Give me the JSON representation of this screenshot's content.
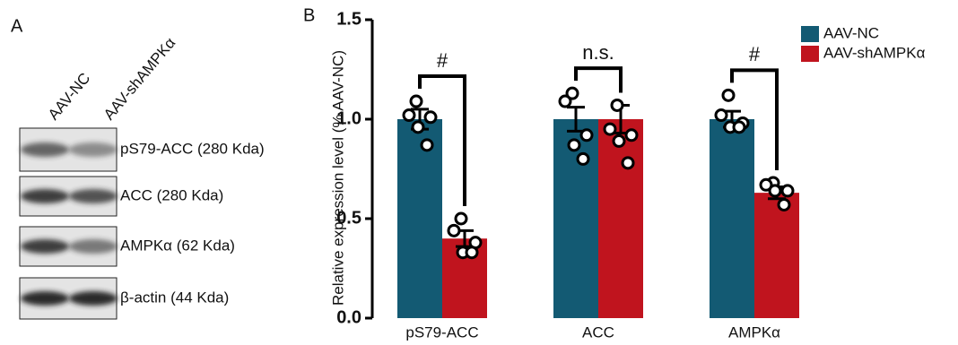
{
  "figure": {
    "panel_labels": [
      "A",
      "B"
    ],
    "blot": {
      "lanes": [
        "AAV-NC",
        "AAV-shAMPKα"
      ],
      "bands": [
        "pS79-ACC (280 Kda)",
        "ACC (280 Kda)",
        "AMPKα (62 Kda)",
        "β-actin (44 Kda)"
      ]
    }
  },
  "chart_data": {
    "type": "bar",
    "ylabel": "Relative expression level (% AAV-NC)",
    "categories": [
      "pS79-ACC",
      "ACC",
      "AMPKα"
    ],
    "series": [
      {
        "name": "AAV-NC",
        "color": "#135a73",
        "values": [
          1.0,
          1.0,
          1.0
        ],
        "errors": [
          0.05,
          0.06,
          0.04
        ],
        "points": [
          [
            1.09,
            1.02,
            1.01,
            0.96,
            0.87
          ],
          [
            1.13,
            1.09,
            0.92,
            0.87,
            0.8
          ],
          [
            1.12,
            1.02,
            0.98,
            0.96,
            0.96
          ]
        ]
      },
      {
        "name": "AAV-shAMPKα",
        "color": "#c0141e",
        "values": [
          0.4,
          1.0,
          0.63
        ],
        "errors": [
          0.04,
          0.07,
          0.03
        ],
        "points": [
          [
            0.5,
            0.44,
            0.38,
            0.33,
            0.33
          ],
          [
            1.07,
            0.95,
            0.92,
            0.89,
            0.78
          ],
          [
            0.68,
            0.67,
            0.64,
            0.64,
            0.57
          ]
        ]
      }
    ],
    "significance": [
      "#",
      "n.s.",
      "#"
    ],
    "ylim": [
      0,
      1.5
    ],
    "yticks": [
      {
        "value": 0,
        "label": "0.0"
      },
      {
        "value": 0.5,
        "label": "0.5"
      },
      {
        "value": 1,
        "label": "1.0"
      },
      {
        "value": 1.5,
        "label": "1.5"
      }
    ],
    "legend": "top-right"
  }
}
